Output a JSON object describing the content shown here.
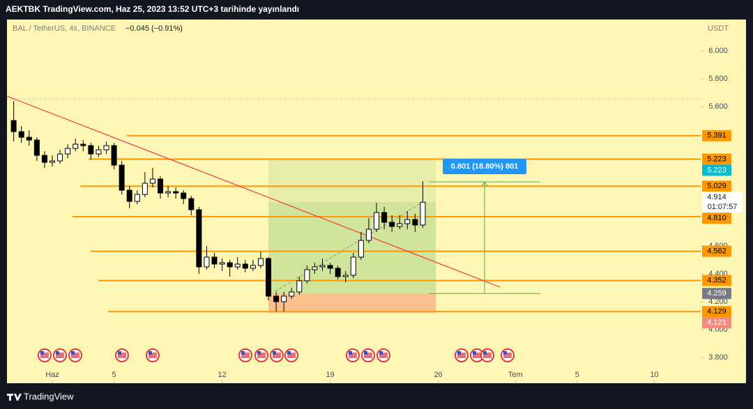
{
  "header": {
    "title": "AEKTBK TradingView.com, Haz 25, 2023 13:52 UTC+3 tarihinde yayınlandı"
  },
  "footer": {
    "brand": "TradingView"
  },
  "chart_data": {
    "type": "candlestick",
    "symbol": "BAL / TetherUS, 4s, BINANCE",
    "change": "−0.045 (−0.91%)",
    "currency": "USDT",
    "xlim": [
      -1.936,
      43.0
    ],
    "ylim": [
      3.615,
      6.225
    ],
    "xticks": [
      {
        "value": 1,
        "label": "Haz"
      },
      5,
      12,
      19,
      26,
      {
        "value": 31,
        "label": "Tem"
      },
      {
        "value": 35,
        "label": "5"
      },
      {
        "value": 40,
        "label": "10"
      }
    ],
    "yticks": [
      {
        "value": 6,
        "label": "6.000"
      },
      {
        "value": 5.8,
        "label": "5.800"
      },
      {
        "value": 5.6,
        "label": "5.600"
      },
      {
        "value": 4.6,
        "label": "4.600"
      },
      {
        "value": 4.4,
        "label": "4.400"
      },
      {
        "value": 4.2,
        "label": "4.200"
      },
      {
        "value": 4,
        "label": "4.000"
      },
      {
        "value": 3.8,
        "label": "3.800"
      }
    ],
    "x": [
      -1.5,
      -1,
      -0.5,
      0,
      0.5,
      1,
      1.5,
      2,
      2.5,
      3,
      3.5,
      4,
      4.5,
      5,
      5.5,
      6,
      6.5,
      7,
      7.5,
      8,
      8.5,
      9,
      9.5,
      10,
      10.5,
      11,
      11.5,
      12,
      12.5,
      13,
      13.5,
      14,
      14.5,
      15,
      15.5,
      16,
      16.5,
      17,
      17.5,
      18,
      18.5,
      19,
      19.5,
      20,
      20.5,
      21,
      21.5,
      22,
      22.5,
      23,
      23.5,
      24,
      24.5,
      25
    ],
    "candles": [
      [
        5.5,
        5.64,
        5.35,
        5.42
      ],
      [
        5.42,
        5.46,
        5.34,
        5.38
      ],
      [
        5.38,
        5.43,
        5.32,
        5.36
      ],
      [
        5.36,
        5.38,
        5.21,
        5.25
      ],
      [
        5.25,
        5.28,
        5.16,
        5.2
      ],
      [
        5.2,
        5.25,
        5.17,
        5.21
      ],
      [
        5.21,
        5.29,
        5.19,
        5.26
      ],
      [
        5.26,
        5.33,
        5.23,
        5.3
      ],
      [
        5.3,
        5.37,
        5.28,
        5.33
      ],
      [
        5.33,
        5.36,
        5.28,
        5.32
      ],
      [
        5.32,
        5.34,
        5.22,
        5.26
      ],
      [
        5.26,
        5.32,
        5.24,
        5.29
      ],
      [
        5.29,
        5.35,
        5.26,
        5.32
      ],
      [
        5.32,
        5.34,
        5.15,
        5.18
      ],
      [
        5.18,
        5.21,
        4.97,
        5.0
      ],
      [
        5.0,
        5.03,
        4.87,
        4.92
      ],
      [
        4.92,
        5.0,
        4.9,
        4.97
      ],
      [
        4.97,
        5.13,
        4.95,
        5.05
      ],
      [
        5.05,
        5.16,
        5.02,
        5.08
      ],
      [
        5.08,
        5.1,
        4.94,
        4.98
      ],
      [
        4.98,
        5.03,
        4.95,
        4.99
      ],
      [
        4.99,
        5.02,
        4.94,
        4.98
      ],
      [
        4.98,
        5.0,
        4.9,
        4.94
      ],
      [
        4.94,
        4.96,
        4.82,
        4.86
      ],
      [
        4.86,
        4.88,
        4.4,
        4.45
      ],
      [
        4.45,
        4.6,
        4.43,
        4.52
      ],
      [
        4.52,
        4.55,
        4.44,
        4.47
      ],
      [
        4.47,
        4.51,
        4.42,
        4.48
      ],
      [
        4.48,
        4.5,
        4.38,
        4.45
      ],
      [
        4.45,
        4.52,
        4.43,
        4.47
      ],
      [
        4.47,
        4.5,
        4.41,
        4.44
      ],
      [
        4.44,
        4.5,
        4.42,
        4.46
      ],
      [
        4.46,
        4.56,
        4.44,
        4.51
      ],
      [
        4.51,
        4.52,
        4.21,
        4.24
      ],
      [
        4.24,
        4.27,
        4.13,
        4.2
      ],
      [
        4.2,
        4.27,
        4.13,
        4.24
      ],
      [
        4.24,
        4.3,
        4.22,
        4.27
      ],
      [
        4.27,
        4.38,
        4.25,
        4.35
      ],
      [
        4.35,
        4.46,
        4.33,
        4.43
      ],
      [
        4.43,
        4.48,
        4.4,
        4.45
      ],
      [
        4.45,
        4.51,
        4.42,
        4.46
      ],
      [
        4.46,
        4.48,
        4.4,
        4.44
      ],
      [
        4.44,
        4.46,
        4.36,
        4.38
      ],
      [
        4.38,
        4.42,
        4.34,
        4.39
      ],
      [
        4.39,
        4.55,
        4.37,
        4.52
      ],
      [
        4.52,
        4.7,
        4.5,
        4.64
      ],
      [
        4.64,
        4.8,
        4.62,
        4.72
      ],
      [
        4.72,
        4.91,
        4.7,
        4.84
      ],
      [
        4.84,
        4.88,
        4.72,
        4.77
      ],
      [
        4.77,
        4.82,
        4.7,
        4.74
      ],
      [
        4.74,
        4.82,
        4.72,
        4.76
      ],
      [
        4.76,
        4.85,
        4.72,
        4.79
      ],
      [
        4.79,
        4.83,
        4.7,
        4.75
      ],
      [
        4.75,
        5.065,
        4.73,
        4.914
      ]
    ],
    "levels": [
      {
        "value": 5.391,
        "from": 5.83
      },
      {
        "value": 5.223,
        "from": 3.35
      },
      {
        "value": 5.029,
        "from": 2.81
      },
      {
        "value": 4.81,
        "label": "4.810",
        "from": 2.31
      },
      {
        "value": 4.562,
        "from": 3.48
      },
      {
        "value": 4.352,
        "from": 3.98
      },
      {
        "value": 4.129,
        "from": 4.61
      }
    ],
    "level_color": "#ff9800",
    "position": {
      "entry": 4.259,
      "target": 5.223,
      "stop": 4.121,
      "from": 15.0,
      "to": 25.84
    },
    "current": {
      "value": 4.914,
      "countdown": "01:07:57"
    },
    "trendline": {
      "x": [
        -1.936,
        30
      ],
      "y": [
        5.675,
        4.305
      ]
    },
    "measure": {
      "from": 4.259,
      "to": 5.06,
      "x": [
        25.4,
        32.6
      ],
      "label": "0.801 (18.80%) 801"
    }
  }
}
